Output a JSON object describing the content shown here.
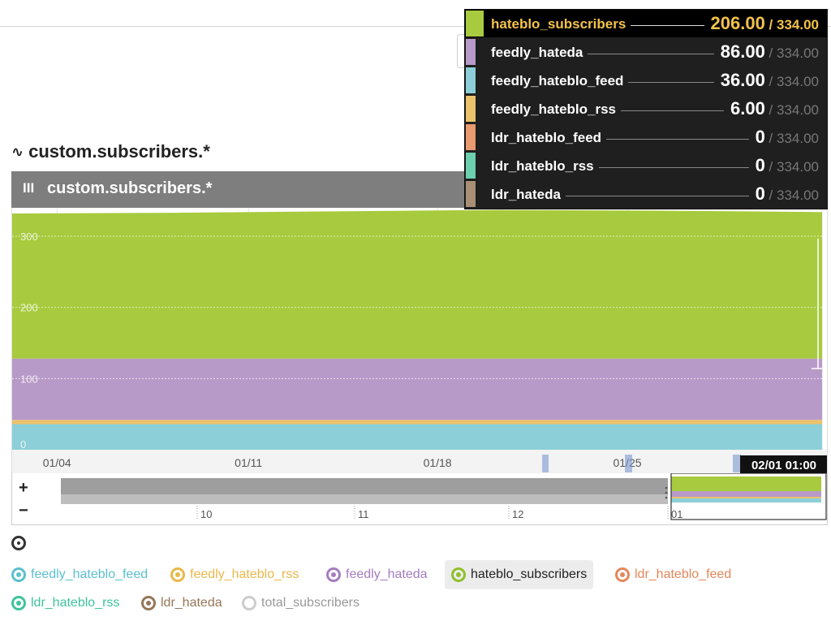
{
  "page": {
    "metric_icon": "wave-icon",
    "metric_title": "custom.subscribers.*",
    "panel_title": "custom.subscribers.*",
    "panel_menu_icon": "hamburger-icon",
    "legend_all_icon": "select-all-toggle-icon"
  },
  "chart_data": {
    "type": "area",
    "stacked": true,
    "ylim": [
      0,
      340
    ],
    "yticks": [
      0,
      100,
      200,
      300
    ],
    "x_tick_labels": [
      "01/04",
      "01/11",
      "01/18",
      "01/25"
    ],
    "hover_label": "02/01 01:00",
    "grid": true,
    "series": [
      {
        "name": "feedly_hateblo_feed",
        "color": "#8ccfd8",
        "x": [
          "01/01",
          "01/04",
          "01/11",
          "01/18",
          "01/25",
          "02/01"
        ],
        "values": [
          36,
          36,
          36,
          36,
          36,
          36
        ]
      },
      {
        "name": "feedly_hateblo_rss",
        "color": "#ebc26b",
        "x": [
          "01/01",
          "01/04",
          "01/11",
          "01/18",
          "01/25",
          "02/01"
        ],
        "values": [
          6,
          6,
          6,
          6,
          6,
          6
        ]
      },
      {
        "name": "feedly_hateda",
        "color": "#b89ac8",
        "x": [
          "01/01",
          "01/04",
          "01/11",
          "01/18",
          "01/25",
          "02/01"
        ],
        "values": [
          86,
          86,
          86,
          86,
          86,
          86
        ]
      },
      {
        "name": "hateblo_subscribers",
        "color": "#a8ca3e",
        "x": [
          "01/01",
          "01/04",
          "01/11",
          "01/18",
          "01/25",
          "02/01"
        ],
        "values": [
          204,
          205,
          207,
          209,
          208,
          206
        ]
      }
    ]
  },
  "navigator": {
    "zoom_in": "+",
    "zoom_out": "−",
    "labels": [
      "10",
      "11",
      "12",
      "01"
    ]
  },
  "tooltip": {
    "total": "/ 334.00",
    "rows": [
      {
        "name": "hateblo_subscribers",
        "value": "206.00",
        "color": "#a8ca3e",
        "highlight": true
      },
      {
        "name": "feedly_hateda",
        "value": "86.00",
        "color": "#b89ac8"
      },
      {
        "name": "feedly_hateblo_feed",
        "value": "36.00",
        "color": "#8ccfd8"
      },
      {
        "name": "feedly_hateblo_rss",
        "value": "6.00",
        "color": "#ebc26b"
      },
      {
        "name": "ldr_hateblo_feed",
        "value": "0",
        "color": "#e79b6e"
      },
      {
        "name": "ldr_hateblo_rss",
        "value": "0",
        "color": "#6ccfae"
      },
      {
        "name": "ldr_hateda",
        "value": "0",
        "color": "#a98f76"
      }
    ]
  },
  "legend": {
    "items": [
      {
        "label": "feedly_hateblo_feed",
        "color": "#5bbfd0"
      },
      {
        "label": "feedly_hateblo_rss",
        "color": "#e9b84a"
      },
      {
        "label": "feedly_hateda",
        "color": "#a57cc0"
      },
      {
        "label": "hateblo_subscribers",
        "color": "#8fbf2a",
        "selected": true
      },
      {
        "label": "ldr_hateblo_feed",
        "color": "#e4875a"
      },
      {
        "label": "ldr_hateblo_rss",
        "color": "#3ec49e"
      },
      {
        "label": "ldr_hateda",
        "color": "#96765a"
      },
      {
        "label": "total_subscribers",
        "color": "#999999",
        "off": true
      }
    ]
  }
}
